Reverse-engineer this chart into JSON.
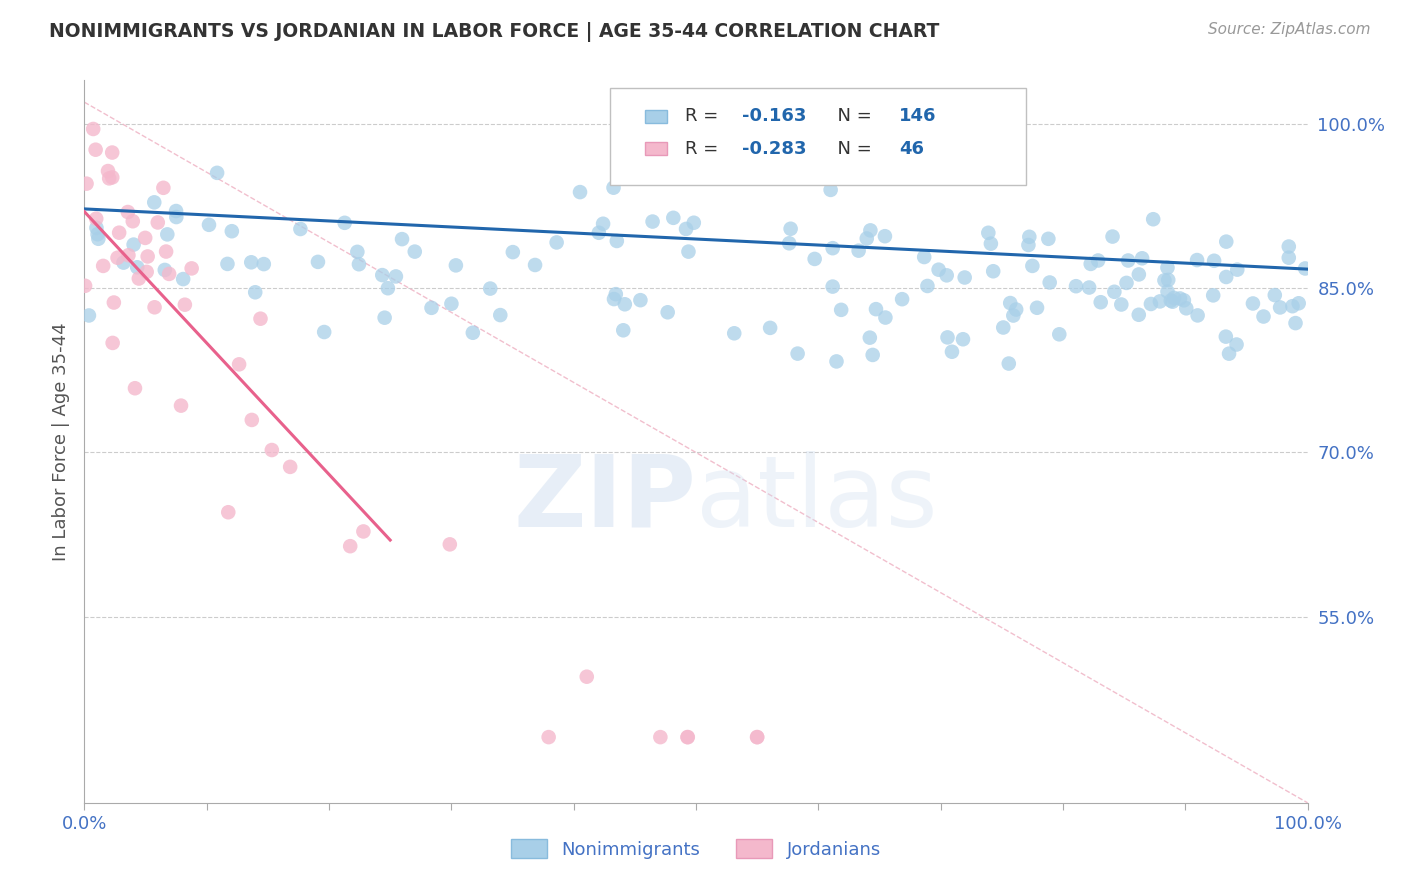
{
  "title": "NONIMMIGRANTS VS JORDANIAN IN LABOR FORCE | AGE 35-44 CORRELATION CHART",
  "source": "Source: ZipAtlas.com",
  "ylabel": "In Labor Force | Age 35-44",
  "x_min": 0.0,
  "x_max": 1.0,
  "y_min": 0.38,
  "y_max": 1.04,
  "y_ticks": [
    0.55,
    0.7,
    0.85,
    1.0
  ],
  "y_tick_labels": [
    "55.0%",
    "70.0%",
    "85.0%",
    "100.0%"
  ],
  "x_ticks": [
    0.0,
    0.1,
    0.2,
    0.3,
    0.4,
    0.5,
    0.6,
    0.7,
    0.8,
    0.9,
    1.0
  ],
  "x_tick_labels_show": [
    "0.0%",
    "",
    "",
    "",
    "",
    "",
    "",
    "",
    "",
    "",
    "100.0%"
  ],
  "blue_R": -0.163,
  "blue_N": 146,
  "pink_R": -0.283,
  "pink_N": 46,
  "blue_scatter_color": "#a8cfe8",
  "pink_scatter_color": "#f4b8cc",
  "blue_line_color": "#2166ac",
  "pink_line_color": "#e8618c",
  "diag_line_color": "#f0b8c8",
  "legend_label_blue": "Nonimmigrants",
  "legend_label_pink": "Jordanians",
  "title_color": "#333333",
  "source_color": "#999999",
  "ylabel_color": "#555555",
  "tick_color": "#4472c4",
  "watermark_color": "#d0dff0",
  "background_color": "#ffffff",
  "grid_color": "#cccccc",
  "legend_text_color": "#333333",
  "legend_value_color": "#2166ac"
}
